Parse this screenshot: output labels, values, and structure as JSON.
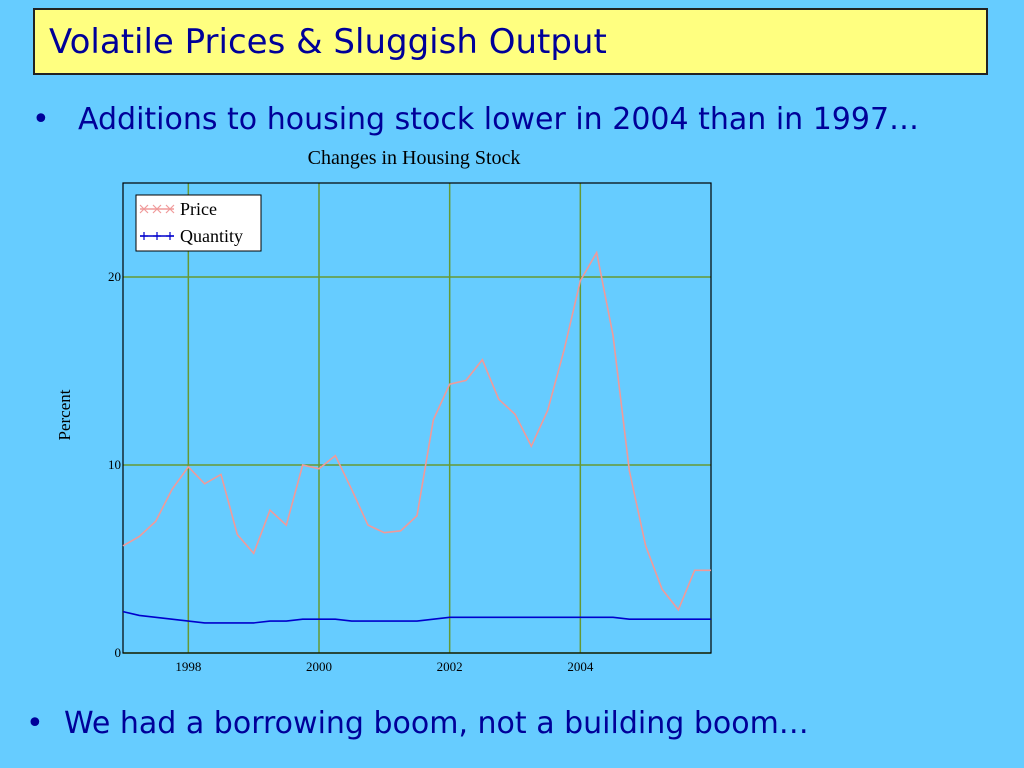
{
  "slide": {
    "title": "Volatile Prices & Sluggish Output",
    "bullets": [
      "Additions to housing stock lower in 2004 than in 1997…",
      "We had a borrowing boom, not a building boom…"
    ]
  },
  "chart_data": {
    "type": "line",
    "title": "Changes in Housing Stock",
    "y_label": "Percent",
    "x": [
      1997,
      1997.25,
      1997.5,
      1997.75,
      1998,
      1998.25,
      1998.5,
      1998.75,
      1999,
      1999.25,
      1999.5,
      1999.75,
      2000,
      2000.25,
      2000.5,
      2000.75,
      2001,
      2001.25,
      2001.5,
      2001.75,
      2002,
      2002.25,
      2002.5,
      2002.75,
      2003,
      2003.25,
      2003.5,
      2003.75,
      2004,
      2004.25,
      2004.5,
      2004.75,
      2005,
      2005.25,
      2005.5,
      2005.75,
      2006
    ],
    "series": [
      {
        "name": "Price",
        "color": "#f09a9a",
        "values": [
          5.7,
          6.2,
          7.0,
          8.7,
          9.9,
          9.0,
          9.5,
          6.3,
          5.3,
          7.6,
          6.8,
          10.0,
          9.8,
          10.5,
          8.7,
          6.8,
          6.4,
          6.5,
          7.3,
          12.4,
          14.3,
          14.5,
          15.6,
          13.5,
          12.7,
          11.0,
          12.9,
          16.1,
          19.8,
          21.3,
          16.9,
          9.7,
          5.7,
          3.4,
          2.3,
          4.4,
          4.4
        ]
      },
      {
        "name": "Quantity",
        "color": "#0000cc",
        "values": [
          2.2,
          2.0,
          1.9,
          1.8,
          1.7,
          1.6,
          1.6,
          1.6,
          1.6,
          1.7,
          1.7,
          1.8,
          1.8,
          1.8,
          1.7,
          1.7,
          1.7,
          1.7,
          1.7,
          1.8,
          1.9,
          1.9,
          1.9,
          1.9,
          1.9,
          1.9,
          1.9,
          1.9,
          1.9,
          1.9,
          1.9,
          1.8,
          1.8,
          1.8,
          1.8,
          1.8,
          1.8
        ]
      }
    ],
    "xlim": [
      1997,
      2006
    ],
    "ylim": [
      0,
      25
    ],
    "xticks": [
      1998,
      2000,
      2002,
      2004
    ],
    "yticks": [
      0,
      10,
      20
    ],
    "grid": true,
    "grid_color": "#669933",
    "legend": "top-left"
  }
}
